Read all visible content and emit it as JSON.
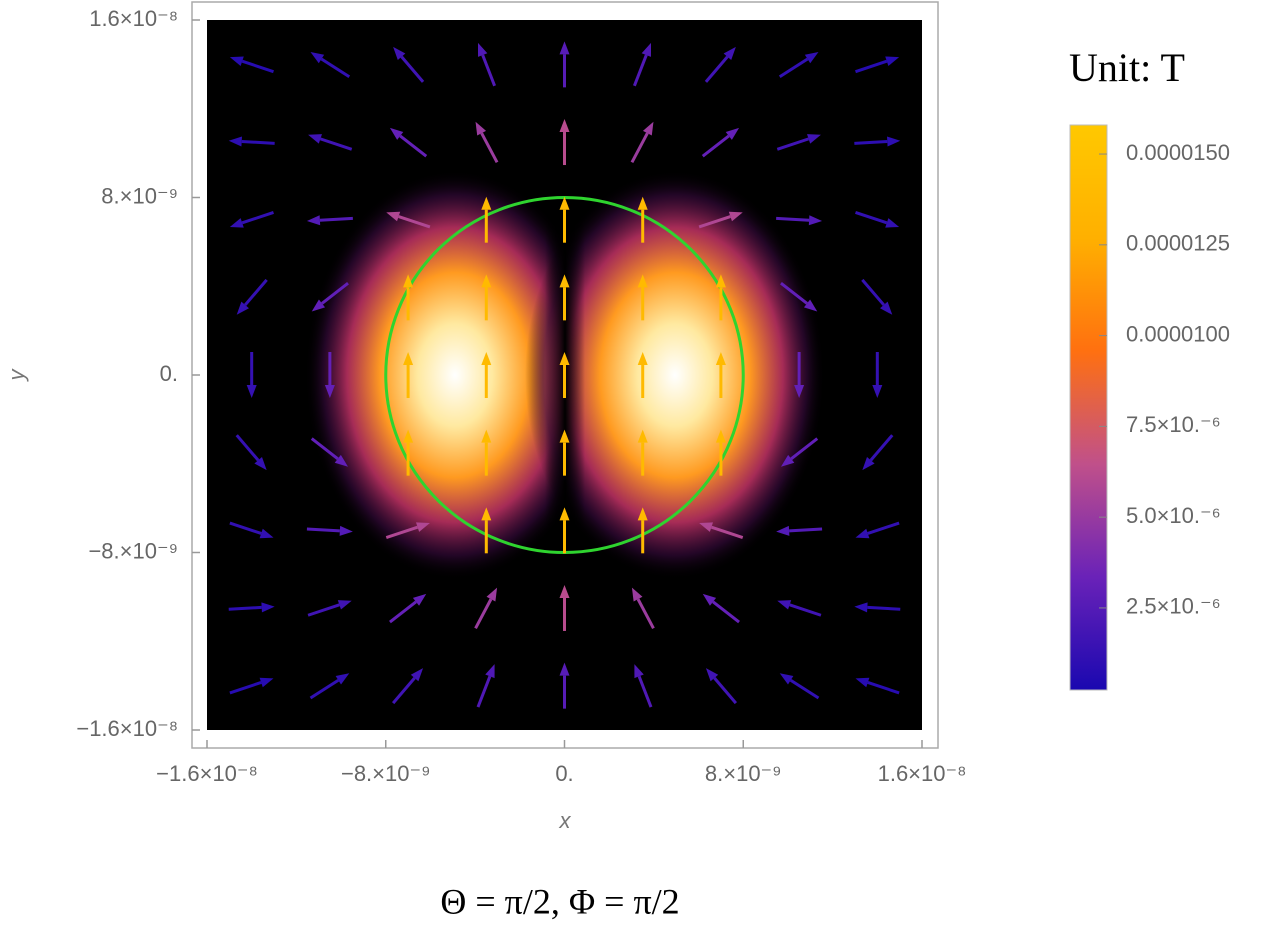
{
  "chart_data": {
    "type": "vector",
    "title": "Θ = π/2, Φ = π/2",
    "xlabel": "x",
    "ylabel": "y",
    "colorbar_title": "Unit: T",
    "x": [
      -1.4e-08,
      -1.05e-08,
      -7e-09,
      -3.5e-09,
      0,
      3.5e-09,
      7e-09,
      1.05e-08,
      1.4e-08
    ],
    "y": [
      -1.4e-08,
      -1.05e-08,
      -7e-09,
      -3.5e-09,
      0,
      3.5e-09,
      7e-09,
      1.05e-08,
      1.4e-08
    ],
    "u": [
      [
        6.93e-07,
        9.63e-07,
        1.122e-06,
        8.42e-07,
        0,
        -8.42e-07,
        -1.122e-06,
        -9.63e-07,
        -6.93e-07
      ],
      [
        9.63e-07,
        1.642e-06,
        2.469e-06,
        2.379e-06,
        0,
        -2.379e-06,
        -2.469e-06,
        -1.642e-06,
        -9.63e-07
      ],
      [
        1.122e-06,
        2.469e-06,
        5.54e-06,
        0,
        0,
        0,
        -5.54e-06,
        -2.469e-06,
        -1.122e-06
      ],
      [
        8.42e-07,
        2.379e-06,
        0,
        0,
        0,
        0,
        0,
        -2.379e-06,
        -8.42e-07
      ],
      [
        0,
        0,
        0,
        0,
        0,
        0,
        0,
        0,
        0
      ],
      [
        -8.42e-07,
        -2.379e-06,
        0,
        0,
        0,
        0,
        0,
        2.379e-06,
        8.42e-07
      ],
      [
        -1.122e-06,
        -2.469e-06,
        -5.54e-06,
        0,
        0,
        0,
        5.54e-06,
        2.469e-06,
        1.122e-06
      ],
      [
        -9.63e-07,
        -1.642e-06,
        -2.469e-06,
        -2.379e-06,
        0,
        2.379e-06,
        2.469e-06,
        1.642e-06,
        9.63e-07
      ],
      [
        -6.93e-07,
        -9.63e-07,
        -1.122e-06,
        -8.42e-07,
        0,
        8.42e-07,
        1.122e-06,
        9.63e-07,
        6.93e-07
      ]
    ],
    "v": [
      [
        2.31e-07,
        6.15e-07,
        1.309e-06,
        2.175e-06,
        2.61e-06,
        2.175e-06,
        1.309e-06,
        6.15e-07,
        2.31e-07
      ],
      [
        5.4e-08,
        5.47e-07,
        1.921e-06,
        4.494e-06,
        6.19e-06,
        4.494e-06,
        1.921e-06,
        5.47e-07,
        5.4e-08
      ],
      [
        -3.74e-07,
        -1.37e-07,
        1.847e-06,
        1.4e-05,
        1.4e-05,
        1.4e-05,
        1.847e-06,
        -1.37e-07,
        -3.74e-07
      ],
      [
        -9.82e-07,
        -1.85e-06,
        1.4e-05,
        1.4e-05,
        1.4e-05,
        1.4e-05,
        1.4e-05,
        -1.85e-06,
        -9.82e-07
      ],
      [
        -1.306e-06,
        -3.096e-06,
        1.4e-05,
        1.4e-05,
        1.4e-05,
        1.4e-05,
        1.4e-05,
        -3.096e-06,
        -1.306e-06
      ],
      [
        -9.82e-07,
        -1.85e-06,
        1.4e-05,
        1.4e-05,
        1.4e-05,
        1.4e-05,
        1.4e-05,
        -1.85e-06,
        -9.82e-07
      ],
      [
        -3.74e-07,
        -1.37e-07,
        1.847e-06,
        1.4e-05,
        1.4e-05,
        1.4e-05,
        1.847e-06,
        -1.37e-07,
        -3.74e-07
      ],
      [
        5.4e-08,
        5.47e-07,
        1.921e-06,
        4.494e-06,
        6.19e-06,
        4.494e-06,
        1.921e-06,
        5.47e-07,
        5.4e-08
      ],
      [
        2.31e-07,
        6.15e-07,
        1.309e-06,
        2.175e-06,
        2.61e-06,
        2.175e-06,
        1.309e-06,
        6.15e-07,
        2.31e-07
      ]
    ],
    "xlim": [
      -1.6e-08,
      1.6e-08
    ],
    "ylim": [
      -1.6e-08,
      1.6e-08
    ],
    "xticks": [
      {
        "value": -1.6e-08,
        "label": "−1.6×10⁻⁸"
      },
      {
        "value": -8e-09,
        "label": "−8.×10⁻⁹"
      },
      {
        "value": 0,
        "label": "0."
      },
      {
        "value": 8e-09,
        "label": "8.×10⁻⁹"
      },
      {
        "value": 1.6e-08,
        "label": "1.6×10⁻⁸"
      }
    ],
    "yticks": [
      {
        "value": -1.6e-08,
        "label": "−1.6×10⁻⁸"
      },
      {
        "value": -8e-09,
        "label": "−8.×10⁻⁹"
      },
      {
        "value": 0,
        "label": "0."
      },
      {
        "value": 8e-09,
        "label": "8.×10⁻⁹"
      },
      {
        "value": 1.6e-08,
        "label": "1.6×10⁻⁸"
      }
    ],
    "background": "#000000",
    "circle": {
      "radius": 8e-09,
      "color": "#2fd42f"
    },
    "colorbar": {
      "lim": [
        2.4e-07,
        1.58e-05
      ],
      "ticks": [
        {
          "value": 1.5e-05,
          "label": "0.0000150"
        },
        {
          "value": 1.25e-05,
          "label": "0.0000125"
        },
        {
          "value": 1e-05,
          "label": "0.0000100"
        },
        {
          "value": 7.5e-06,
          "label": "7.5×10.⁻⁶"
        },
        {
          "value": 5e-06,
          "label": "5.0×10.⁻⁶"
        },
        {
          "value": 2.5e-06,
          "label": "2.5×10.⁻⁶"
        }
      ],
      "colors": [
        "#1a08b0",
        "#6a22b8",
        "#c0508a",
        "#ff7010",
        "#ffb000",
        "#ffc800"
      ]
    }
  }
}
